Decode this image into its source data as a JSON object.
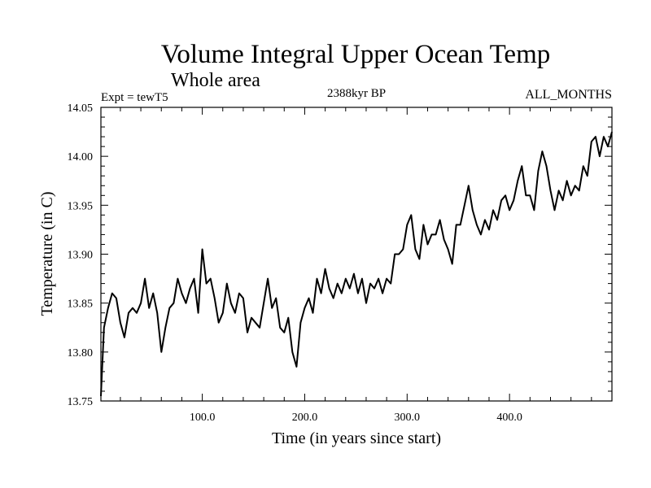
{
  "chart_data": {
    "type": "line",
    "title": "Volume Integral Upper Ocean Temp",
    "subtitle": "Whole area",
    "left_label": "Expt = tewT5",
    "center_label": "2388kyr BP",
    "right_label": "ALL_MONTHS",
    "xlabel": "Time (in years since start)",
    "ylabel": "Temperature (in C)",
    "xlim": [
      1,
      500
    ],
    "ylim": [
      13.75,
      14.05
    ],
    "x_ticks": [
      100,
      200,
      300,
      400
    ],
    "x_tick_labels": [
      "100.0",
      "200.0",
      "300.0",
      "400.0"
    ],
    "y_ticks": [
      13.75,
      13.8,
      13.85,
      13.9,
      13.95,
      14.0,
      14.05
    ],
    "y_tick_labels": [
      "13.75",
      "13.80",
      "13.85",
      "13.90",
      "13.95",
      "14.00",
      "14.05"
    ],
    "line_color": "#000000",
    "series": [
      {
        "name": "Expt = tewT5",
        "x": [
          1,
          4,
          8,
          12,
          16,
          20,
          24,
          28,
          32,
          36,
          40,
          44,
          48,
          52,
          56,
          60,
          64,
          68,
          72,
          76,
          80,
          84,
          88,
          92,
          96,
          100,
          104,
          108,
          112,
          116,
          120,
          124,
          128,
          132,
          136,
          140,
          144,
          148,
          152,
          156,
          160,
          164,
          168,
          172,
          176,
          180,
          184,
          188,
          192,
          196,
          200,
          204,
          208,
          212,
          216,
          220,
          224,
          228,
          232,
          236,
          240,
          244,
          248,
          252,
          256,
          260,
          264,
          268,
          272,
          276,
          280,
          284,
          288,
          292,
          296,
          300,
          304,
          308,
          312,
          316,
          320,
          324,
          328,
          332,
          336,
          340,
          344,
          348,
          352,
          356,
          360,
          364,
          368,
          372,
          376,
          380,
          384,
          388,
          392,
          396,
          400,
          404,
          408,
          412,
          416,
          420,
          424,
          428,
          432,
          436,
          440,
          444,
          448,
          452,
          456,
          460,
          464,
          468,
          472,
          476,
          480,
          484,
          488,
          492,
          496,
          500
        ],
        "y": [
          13.755,
          13.825,
          13.845,
          13.86,
          13.855,
          13.83,
          13.815,
          13.84,
          13.845,
          13.84,
          13.85,
          13.875,
          13.845,
          13.86,
          13.84,
          13.8,
          13.825,
          13.845,
          13.85,
          13.875,
          13.86,
          13.85,
          13.865,
          13.875,
          13.84,
          13.905,
          13.87,
          13.875,
          13.855,
          13.83,
          13.84,
          13.87,
          13.85,
          13.84,
          13.86,
          13.855,
          13.82,
          13.835,
          13.83,
          13.825,
          13.85,
          13.875,
          13.845,
          13.855,
          13.825,
          13.82,
          13.835,
          13.8,
          13.785,
          13.83,
          13.845,
          13.855,
          13.84,
          13.875,
          13.86,
          13.885,
          13.865,
          13.855,
          13.87,
          13.86,
          13.875,
          13.865,
          13.88,
          13.86,
          13.875,
          13.85,
          13.87,
          13.865,
          13.875,
          13.86,
          13.875,
          13.87,
          13.9,
          13.9,
          13.905,
          13.93,
          13.94,
          13.905,
          13.895,
          13.93,
          13.91,
          13.92,
          13.92,
          13.935,
          13.915,
          13.905,
          13.89,
          13.93,
          13.93,
          13.95,
          13.97,
          13.945,
          13.93,
          13.92,
          13.935,
          13.925,
          13.945,
          13.935,
          13.955,
          13.96,
          13.945,
          13.955,
          13.975,
          13.99,
          13.96,
          13.96,
          13.945,
          13.985,
          14.005,
          13.99,
          13.965,
          13.945,
          13.965,
          13.955,
          13.975,
          13.96,
          13.97,
          13.965,
          13.99,
          13.98,
          14.015,
          14.02,
          14.0,
          14.02,
          14.01,
          14.025
        ]
      }
    ]
  }
}
